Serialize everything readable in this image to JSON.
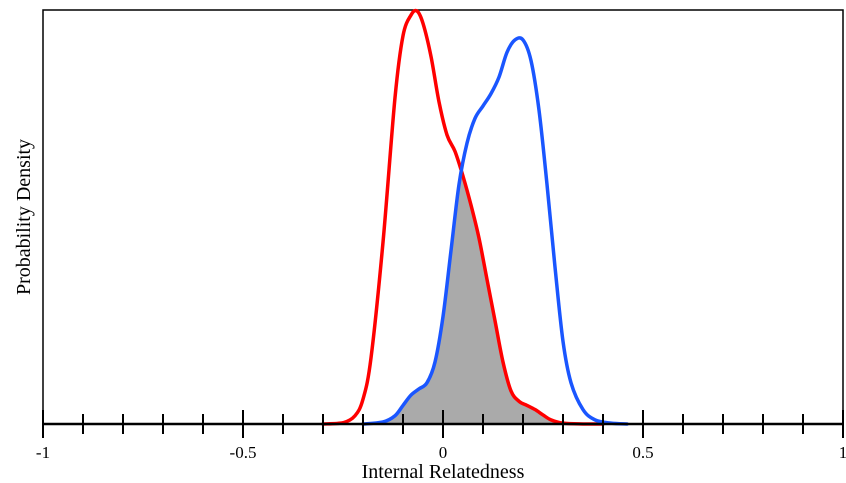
{
  "chart_data": {
    "type": "area",
    "title": "",
    "xlabel": "Internal Relatedness",
    "ylabel": "Probability Density",
    "xlim": [
      -1,
      1
    ],
    "ylim": [
      0,
      1
    ],
    "grid": false,
    "legend": "none",
    "x_major_ticks": [
      -1,
      -0.5,
      0,
      0.5,
      1
    ],
    "x_tick_labels": [
      "-1",
      "-0.5",
      "0",
      "0.5",
      "1"
    ],
    "x_minor_step": 0.1,
    "overlap_fill": "#aaaaaa",
    "series": [
      {
        "color": "#ff0000",
        "x": [
          -0.3,
          -0.25,
          -0.22,
          -0.2,
          -0.18,
          -0.15,
          -0.12,
          -0.1,
          -0.08,
          -0.065,
          -0.05,
          -0.03,
          -0.01,
          0.01,
          0.03,
          0.05,
          0.07,
          0.09,
          0.11,
          0.13,
          0.15,
          0.17,
          0.19,
          0.21,
          0.23,
          0.25,
          0.27,
          0.3,
          0.35,
          0.4
        ],
        "y": [
          0.0,
          0.003,
          0.02,
          0.06,
          0.16,
          0.44,
          0.79,
          0.94,
          0.99,
          1.0,
          0.97,
          0.89,
          0.78,
          0.7,
          0.66,
          0.6,
          0.53,
          0.45,
          0.35,
          0.25,
          0.15,
          0.08,
          0.055,
          0.045,
          0.035,
          0.022,
          0.01,
          0.002,
          0.0,
          0.0
        ]
      },
      {
        "color": "#1a56ff",
        "x": [
          -0.2,
          -0.15,
          -0.12,
          -0.1,
          -0.08,
          -0.06,
          -0.04,
          -0.02,
          0.0,
          0.02,
          0.04,
          0.06,
          0.08,
          0.1,
          0.12,
          0.14,
          0.16,
          0.18,
          0.2,
          0.22,
          0.24,
          0.26,
          0.28,
          0.3,
          0.32,
          0.35,
          0.38,
          0.42,
          0.46
        ],
        "y": [
          0.0,
          0.005,
          0.02,
          0.045,
          0.07,
          0.085,
          0.1,
          0.15,
          0.26,
          0.42,
          0.58,
          0.68,
          0.74,
          0.77,
          0.8,
          0.84,
          0.9,
          0.93,
          0.93,
          0.88,
          0.76,
          0.58,
          0.38,
          0.2,
          0.1,
          0.035,
          0.01,
          0.002,
          0.0
        ]
      }
    ]
  }
}
